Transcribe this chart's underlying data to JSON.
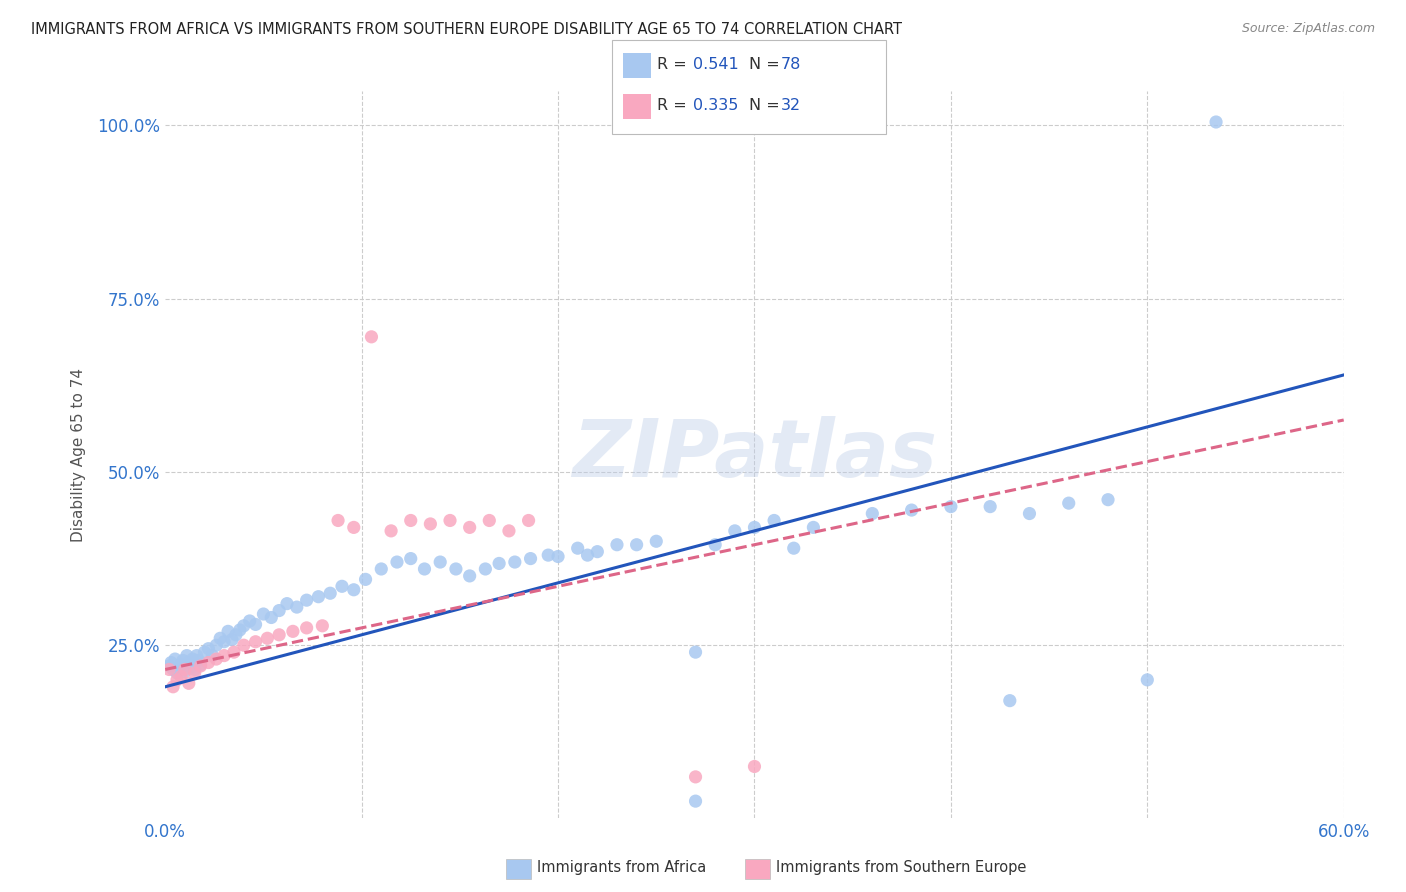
{
  "title": "IMMIGRANTS FROM AFRICA VS IMMIGRANTS FROM SOUTHERN EUROPE DISABILITY AGE 65 TO 74 CORRELATION CHART",
  "source": "Source: ZipAtlas.com",
  "ylabel": "Disability Age 65 to 74",
  "x_min": 0.0,
  "x_max": 0.6,
  "y_min": 0.0,
  "y_max": 1.05,
  "africa_R": 0.541,
  "africa_N": 78,
  "europe_R": 0.335,
  "europe_N": 32,
  "africa_color": "#a8c8f0",
  "europe_color": "#f9a8c0",
  "africa_line_color": "#2255bb",
  "europe_line_color": "#dd6688",
  "legend_R_color": "#2255bb",
  "legend_N_color": "#2255bb",
  "watermark": "ZIPatlas",
  "background_color": "#ffffff",
  "grid_color": "#cccccc",
  "title_color": "#222222",
  "axis_label_color": "#3375cc",
  "africa_slope": 0.75,
  "africa_intercept": 0.19,
  "europe_slope": 0.6,
  "europe_intercept": 0.215,
  "africa_points_x": [
    0.002,
    0.003,
    0.004,
    0.005,
    0.006,
    0.007,
    0.008,
    0.009,
    0.01,
    0.011,
    0.012,
    0.013,
    0.014,
    0.015,
    0.016,
    0.017,
    0.018,
    0.02,
    0.022,
    0.024,
    0.026,
    0.028,
    0.03,
    0.032,
    0.034,
    0.036,
    0.038,
    0.04,
    0.043,
    0.046,
    0.05,
    0.054,
    0.058,
    0.062,
    0.067,
    0.072,
    0.078,
    0.084,
    0.09,
    0.096,
    0.102,
    0.11,
    0.118,
    0.125,
    0.132,
    0.14,
    0.148,
    0.155,
    0.163,
    0.17,
    0.178,
    0.186,
    0.195,
    0.2,
    0.21,
    0.215,
    0.22,
    0.23,
    0.24,
    0.25,
    0.27,
    0.28,
    0.29,
    0.3,
    0.31,
    0.32,
    0.33,
    0.36,
    0.38,
    0.4,
    0.42,
    0.44,
    0.46,
    0.48,
    0.5,
    0.27,
    0.43,
    0.535
  ],
  "africa_points_y": [
    0.22,
    0.225,
    0.215,
    0.23,
    0.21,
    0.218,
    0.222,
    0.228,
    0.212,
    0.235,
    0.225,
    0.218,
    0.23,
    0.215,
    0.235,
    0.228,
    0.222,
    0.24,
    0.245,
    0.235,
    0.25,
    0.26,
    0.255,
    0.27,
    0.258,
    0.265,
    0.272,
    0.278,
    0.285,
    0.28,
    0.295,
    0.29,
    0.3,
    0.31,
    0.305,
    0.315,
    0.32,
    0.325,
    0.335,
    0.33,
    0.345,
    0.36,
    0.37,
    0.375,
    0.36,
    0.37,
    0.36,
    0.35,
    0.36,
    0.368,
    0.37,
    0.375,
    0.38,
    0.378,
    0.39,
    0.38,
    0.385,
    0.395,
    0.395,
    0.4,
    0.24,
    0.395,
    0.415,
    0.42,
    0.43,
    0.39,
    0.42,
    0.44,
    0.445,
    0.45,
    0.45,
    0.44,
    0.455,
    0.46,
    0.2,
    0.025,
    0.17,
    1.005
  ],
  "europe_points_x": [
    0.002,
    0.004,
    0.006,
    0.008,
    0.01,
    0.012,
    0.015,
    0.018,
    0.022,
    0.026,
    0.03,
    0.035,
    0.04,
    0.046,
    0.052,
    0.058,
    0.065,
    0.072,
    0.08,
    0.088,
    0.096,
    0.105,
    0.115,
    0.125,
    0.135,
    0.145,
    0.155,
    0.165,
    0.175,
    0.185,
    0.27,
    0.3
  ],
  "europe_points_y": [
    0.215,
    0.19,
    0.2,
    0.205,
    0.215,
    0.195,
    0.21,
    0.22,
    0.225,
    0.23,
    0.235,
    0.24,
    0.25,
    0.255,
    0.26,
    0.265,
    0.27,
    0.275,
    0.278,
    0.43,
    0.42,
    0.695,
    0.415,
    0.43,
    0.425,
    0.43,
    0.42,
    0.43,
    0.415,
    0.43,
    0.06,
    0.075
  ]
}
